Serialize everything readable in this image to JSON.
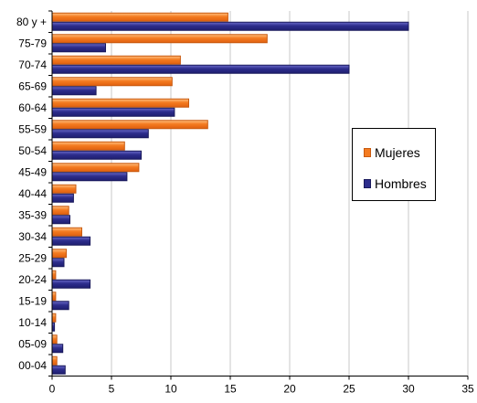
{
  "chart_data": {
    "type": "bar",
    "orientation": "horizontal",
    "title": "",
    "xlabel": "",
    "ylabel": "",
    "xlim": [
      0,
      35
    ],
    "x_ticks": [
      0,
      5,
      10,
      15,
      20,
      25,
      30,
      35
    ],
    "grid": "vertical",
    "legend_position": "right",
    "categories": [
      "80 y +",
      "75-79",
      "70-74",
      "65-69",
      "60-64",
      "55-59",
      "50-54",
      "45-49",
      "40-44",
      "35-39",
      "30-34",
      "25-29",
      "20-24",
      "15-19",
      "10-14",
      "05-09",
      "00-04"
    ],
    "series": [
      {
        "name": "Mujeres",
        "color": "#f47b20",
        "values": [
          14.8,
          18.1,
          10.8,
          10.1,
          11.5,
          13.1,
          6.1,
          7.3,
          2.0,
          1.4,
          2.5,
          1.2,
          0.3,
          0.3,
          0.3,
          0.4,
          0.4
        ]
      },
      {
        "name": "Hombres",
        "color": "#2d2d8c",
        "values": [
          30.0,
          4.5,
          25.0,
          3.7,
          10.3,
          8.1,
          7.5,
          6.3,
          1.8,
          1.5,
          3.2,
          1.0,
          3.2,
          1.4,
          0.2,
          0.9,
          1.1
        ]
      }
    ]
  }
}
